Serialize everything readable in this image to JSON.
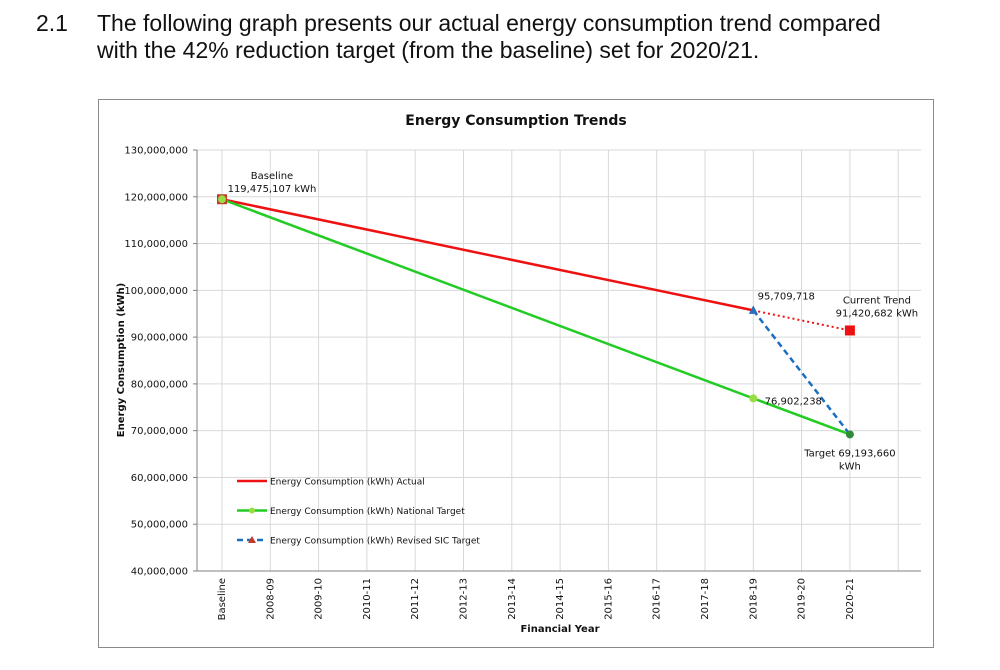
{
  "paragraph": {
    "number": "2.1",
    "line1": "The following graph presents our actual energy consumption trend compared",
    "line2": "with the 42% reduction target (from the baseline) set for 2020/21."
  },
  "chart_data": {
    "type": "line",
    "title": "Energy Consumption  Trends",
    "xlabel": "Financial  Year",
    "ylabel": "Energy Consumption (kWh)",
    "categories": [
      "Baseline",
      "2008-09",
      "2009-10",
      "2010-11",
      "2011-12",
      "2012-13",
      "2013-14",
      "2014-15",
      "2015-16",
      "2016-17",
      "2017-18",
      "2018-19",
      "2019-20",
      "2020-21"
    ],
    "ylim": [
      40000000,
      130000000
    ],
    "yticks": [
      "40,000,000",
      "50,000,000",
      "60,000,000",
      "70,000,000",
      "80,000,000",
      "90,000,000",
      "100,000,000",
      "110,000,000",
      "120,000,000",
      "130,000,000"
    ],
    "grid": true,
    "legend_position": "bottom-left",
    "series": [
      {
        "name": "Energy Consumption (kWh) Actual",
        "color": "#ee1111",
        "style": "solid",
        "points": [
          [
            "Baseline",
            119475107
          ],
          [
            "2018-19",
            95709718
          ]
        ]
      },
      {
        "name": "Energy Consumption (kWh) National Target",
        "color": "#22cc22",
        "marker_color": "#99dd44",
        "style": "solid",
        "points": [
          [
            "Baseline",
            119475107
          ],
          [
            "2018-19",
            76902238
          ],
          [
            "2020-21",
            69193660
          ]
        ]
      },
      {
        "name": "Energy Consumption (kWh) Revised SIC Target",
        "color": "#1a6fc0",
        "style": "dashed",
        "points": [
          [
            "2018-19",
            95709718
          ],
          [
            "2020-21",
            69193660
          ]
        ]
      },
      {
        "color": "#ee1111",
        "style": "dotted",
        "points": [
          [
            "2018-19",
            95709718
          ],
          [
            "2020-21",
            91420682
          ]
        ]
      }
    ],
    "annotations": [
      {
        "lines": [
          "Baseline",
          "119,475,107 kWh"
        ],
        "category": "Baseline",
        "value": 119475107
      },
      {
        "lines": [
          "95,709,718"
        ],
        "category": "2018-19",
        "value": 95709718
      },
      {
        "lines": [
          "Current Trend",
          "91,420,682 kWh"
        ],
        "category": "2020-21",
        "value": 91420682
      },
      {
        "lines": [
          "76,902,238"
        ],
        "category": "2018-19",
        "value": 76902238
      },
      {
        "lines": [
          "Target 69,193,660",
          "kWh"
        ],
        "category": "2020-21",
        "value": 69193660
      }
    ]
  }
}
